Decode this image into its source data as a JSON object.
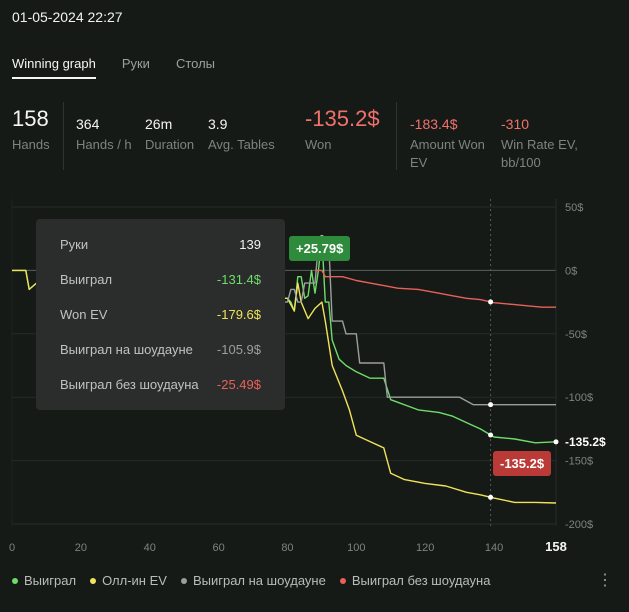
{
  "date": "01-05-2024 22:27",
  "tabs": [
    "Winning graph",
    "Руки",
    "Столы"
  ],
  "stats": {
    "hands": {
      "value": "158",
      "label": "Hands"
    },
    "hands_per_hour": {
      "value": "364",
      "label": "Hands / h"
    },
    "duration": {
      "value": "26m",
      "label": "Duration"
    },
    "avg_tables": {
      "value": "3.9",
      "label": "Avg. Tables"
    },
    "won": {
      "value": "-135.2$",
      "label": "Won"
    },
    "amount_won_ev": {
      "value": "-183.4$",
      "label": "Amount Won EV"
    },
    "win_rate_ev": {
      "value": "-310",
      "label": "Win Rate EV, bb/100"
    }
  },
  "tooltip": {
    "rows": [
      {
        "label": "Руки",
        "value": "139",
        "color": "#f0f0f0"
      },
      {
        "label": "Выиграл",
        "value": "-131.4$",
        "color": "#6fdc6a"
      },
      {
        "label": "Won EV",
        "value": "-179.6$",
        "color": "#f0e35a"
      },
      {
        "label": "Выиграл на шоудауне",
        "value": "-105.9$",
        "color": "#9b9e9c"
      },
      {
        "label": "Выиграл без шоудауна",
        "value": "-25.49$",
        "color": "#e8605a"
      }
    ]
  },
  "badges": {
    "peak": "+25.79$",
    "final": "-135.2$"
  },
  "chart_data": {
    "type": "line",
    "x_ticks": [
      "0",
      "20",
      "40",
      "60",
      "80",
      "100",
      "120",
      "140",
      "158"
    ],
    "y_ticks": [
      "50$",
      "0$",
      "-50$",
      "-100$",
      "-150$",
      "-200$"
    ],
    "xlim": [
      0,
      158
    ],
    "ylim": [
      -200,
      50
    ],
    "end_label": "-135.2$",
    "series": [
      {
        "name": "Выиграл",
        "color": "#6fdc6a",
        "points": [
          [
            0,
            0
          ],
          [
            4,
            0
          ],
          [
            5,
            -15
          ],
          [
            8,
            -8
          ],
          [
            12,
            -5
          ],
          [
            16,
            -10
          ],
          [
            20,
            -10
          ],
          [
            24,
            -8
          ],
          [
            28,
            -12
          ],
          [
            32,
            -12
          ],
          [
            36,
            -15
          ],
          [
            40,
            -15
          ],
          [
            44,
            -15
          ],
          [
            48,
            -12
          ],
          [
            52,
            -15
          ],
          [
            56,
            -18
          ],
          [
            60,
            -20
          ],
          [
            66,
            -25
          ],
          [
            74,
            -28
          ],
          [
            78,
            -22
          ],
          [
            80,
            -22
          ],
          [
            81,
            -25
          ],
          [
            82,
            -32
          ],
          [
            83,
            -5
          ],
          [
            84,
            -5
          ],
          [
            85,
            -22
          ],
          [
            86,
            -20
          ],
          [
            87,
            0
          ],
          [
            88,
            -18
          ],
          [
            89,
            0
          ],
          [
            90,
            25.79
          ],
          [
            91,
            -25
          ],
          [
            92,
            -25
          ],
          [
            93,
            -55
          ],
          [
            95,
            -70
          ],
          [
            97,
            -75
          ],
          [
            100,
            -80
          ],
          [
            104,
            -85
          ],
          [
            108,
            -85
          ],
          [
            110,
            -102
          ],
          [
            118,
            -110
          ],
          [
            124,
            -112
          ],
          [
            128,
            -115
          ],
          [
            132,
            -120
          ],
          [
            136,
            -125
          ],
          [
            140,
            -131.4
          ],
          [
            146,
            -133
          ],
          [
            152,
            -136
          ],
          [
            158,
            -135.2
          ]
        ]
      },
      {
        "name": "Олл-ин EV",
        "color": "#f0e35a",
        "points": [
          [
            0,
            0
          ],
          [
            4,
            0
          ],
          [
            5,
            -15
          ],
          [
            8,
            -8
          ],
          [
            12,
            -5
          ],
          [
            16,
            -10
          ],
          [
            20,
            -10
          ],
          [
            24,
            -8
          ],
          [
            28,
            -12
          ],
          [
            32,
            -12
          ],
          [
            36,
            -15
          ],
          [
            40,
            -15
          ],
          [
            44,
            -15
          ],
          [
            48,
            -12
          ],
          [
            52,
            -15
          ],
          [
            56,
            -18
          ],
          [
            60,
            -20
          ],
          [
            66,
            -25
          ],
          [
            74,
            -28
          ],
          [
            78,
            -22
          ],
          [
            80,
            -22
          ],
          [
            82,
            -32
          ],
          [
            83,
            -10
          ],
          [
            84,
            -25
          ],
          [
            86,
            -38
          ],
          [
            88,
            -30
          ],
          [
            90,
            -25
          ],
          [
            91,
            -40
          ],
          [
            93,
            -75
          ],
          [
            96,
            -95
          ],
          [
            98,
            -110
          ],
          [
            100,
            -130
          ],
          [
            104,
            -135
          ],
          [
            108,
            -140
          ],
          [
            110,
            -160
          ],
          [
            114,
            -165
          ],
          [
            120,
            -168
          ],
          [
            126,
            -170
          ],
          [
            132,
            -175
          ],
          [
            136,
            -177
          ],
          [
            140,
            -179.6
          ],
          [
            146,
            -183
          ],
          [
            152,
            -183
          ],
          [
            158,
            -183.4
          ]
        ]
      },
      {
        "name": "Выиграл на шоудауне",
        "color": "#9b9e9c",
        "points": [
          [
            79,
            -25
          ],
          [
            80,
            -25
          ],
          [
            81,
            -15
          ],
          [
            82,
            -15
          ],
          [
            83,
            -25
          ],
          [
            84,
            -25
          ],
          [
            85,
            -10
          ],
          [
            88,
            -10
          ],
          [
            89,
            20
          ],
          [
            92,
            20
          ],
          [
            93,
            -40
          ],
          [
            96,
            -40
          ],
          [
            97,
            -50
          ],
          [
            100,
            -50
          ],
          [
            101,
            -73
          ],
          [
            108,
            -73
          ],
          [
            109,
            -100
          ],
          [
            130,
            -100
          ],
          [
            134,
            -105.9
          ],
          [
            158,
            -105.9
          ]
        ]
      },
      {
        "name": "Выиграл без шоудауна",
        "color": "#e8605a",
        "points": [
          [
            88,
            0
          ],
          [
            90,
            0
          ],
          [
            91,
            -5
          ],
          [
            96,
            -5
          ],
          [
            100,
            -8
          ],
          [
            104,
            -10
          ],
          [
            108,
            -12
          ],
          [
            112,
            -14
          ],
          [
            118,
            -15
          ],
          [
            124,
            -18
          ],
          [
            128,
            -20
          ],
          [
            132,
            -22
          ],
          [
            136,
            -23
          ],
          [
            140,
            -25.49
          ],
          [
            146,
            -27
          ],
          [
            150,
            -28
          ],
          [
            154,
            -29
          ],
          [
            158,
            -29
          ]
        ]
      }
    ]
  },
  "legend": [
    {
      "label": "Выиграл",
      "color": "#6fdc6a"
    },
    {
      "label": "Олл-ин EV",
      "color": "#f0e35a"
    },
    {
      "label": "Выиграл на шоудауне",
      "color": "#9b9e9c"
    },
    {
      "label": "Выиграл без шоудауна",
      "color": "#e8605a"
    }
  ],
  "menu_icon": "⋮"
}
